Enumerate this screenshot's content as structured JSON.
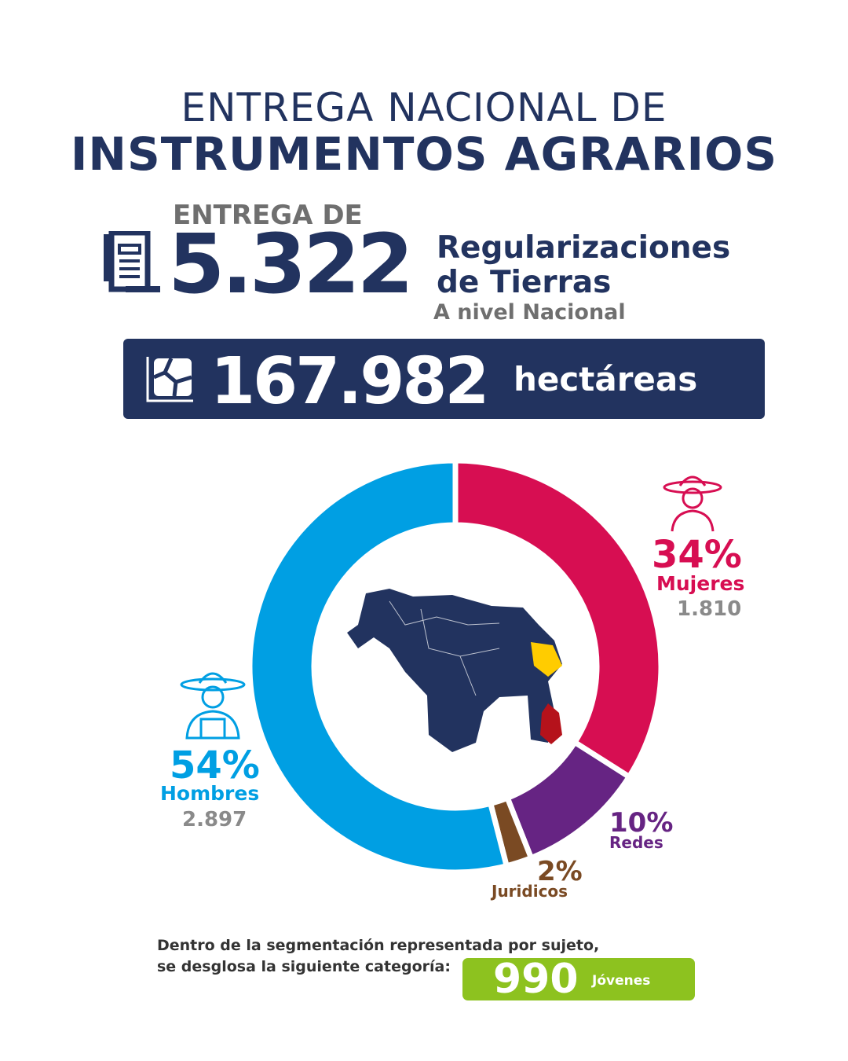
{
  "header": {
    "line1": "ENTREGA NACIONAL DE",
    "line2": "INSTRUMENTOS AGRARIOS"
  },
  "regularizaciones": {
    "prefix": "ENTREGA DE",
    "number": "5.322",
    "label_line1": "Regularizaciones",
    "label_line2": "de Tierras",
    "scope": "A nivel Nacional",
    "icon": "document-stack-icon"
  },
  "hectareas": {
    "number": "167.982",
    "label": "hectáreas",
    "icon": "land-plot-icon"
  },
  "chart_data": {
    "type": "pie",
    "donut": true,
    "start": "top",
    "direction": "clockwise",
    "slices": [
      {
        "name": "Mujeres",
        "percent_label": "34%",
        "value": 34,
        "count": "1.810",
        "color": "#d70e52",
        "icon": "female-farmer-icon"
      },
      {
        "name": "Redes",
        "percent_label": "10%",
        "value": 10,
        "color": "#662483",
        "icon": ""
      },
      {
        "name": "Juridicos",
        "percent_label": "2%",
        "value": 2,
        "color": "#7a4a23",
        "icon": ""
      },
      {
        "name": "Hombres",
        "percent_label": "54%",
        "value": 54,
        "count": "2.897",
        "color": "#009fe3",
        "icon": "male-farmer-icon"
      }
    ],
    "center_image": "venezuela-map"
  },
  "footer": {
    "line1": "Dentro de la segmentación representada por sujeto,",
    "line2": "se desglosa la siguiente categoría:",
    "number": "990",
    "label": "Jóvenes"
  },
  "colors": {
    "navy": "#22335f",
    "gray": "#6f6f6f",
    "green": "#8dc21f"
  }
}
